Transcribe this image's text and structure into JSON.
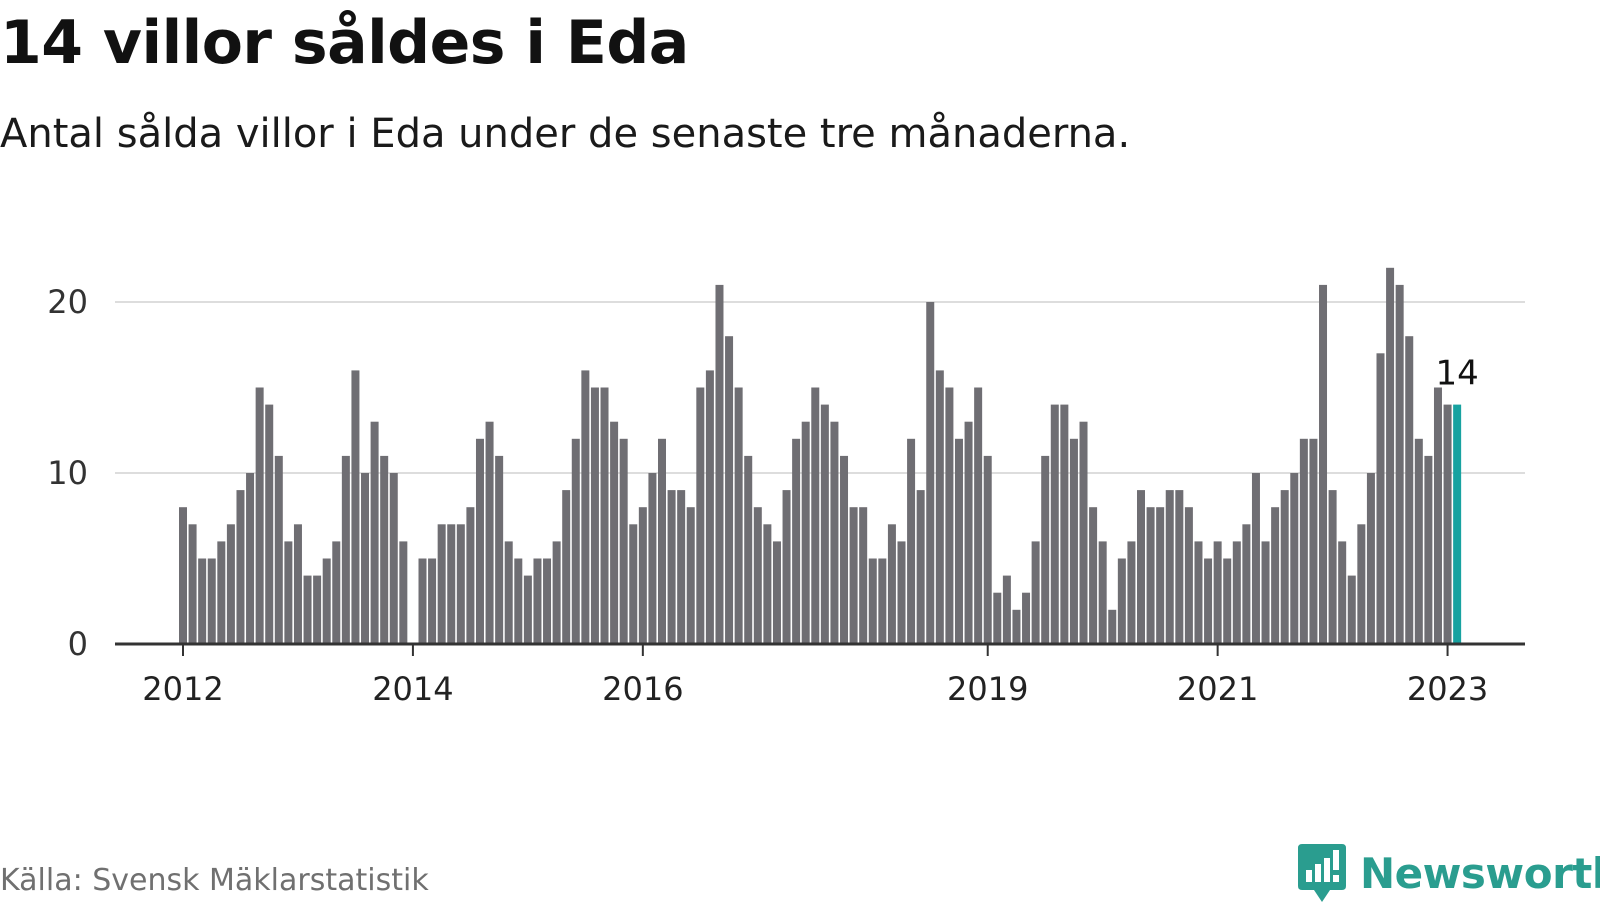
{
  "header": {
    "title": "14 villor såldes i Eda",
    "subtitle": "Antal sålda villor i Eda under de senaste tre månaderna."
  },
  "footer": {
    "source": "Källa: Svensk Mäklarstatistik",
    "brand": "Newsworthy"
  },
  "colors": {
    "bar": "#6f6e73",
    "highlight": "#17a2a0",
    "gridline": "#dddddd",
    "axis": "#333333",
    "brand": "#2a9d8f"
  },
  "chart_data": {
    "type": "bar",
    "title": "14 villor såldes i Eda",
    "subtitle": "Antal sålda villor i Eda under de senaste tre månaderna.",
    "xlabel": "",
    "ylabel": "",
    "ylim": [
      0,
      22
    ],
    "y_ticks": [
      0,
      10,
      20
    ],
    "grid": true,
    "x_ticks": [
      {
        "label": "2012",
        "month_index": 0
      },
      {
        "label": "2014",
        "month_index": 24
      },
      {
        "label": "2016",
        "month_index": 48
      },
      {
        "label": "2019",
        "month_index": 84
      },
      {
        "label": "2021",
        "month_index": 108
      },
      {
        "label": "2023",
        "month_index": 132
      }
    ],
    "start": "2012-01",
    "values": [
      8,
      7,
      5,
      5,
      6,
      7,
      9,
      10,
      15,
      14,
      11,
      6,
      7,
      4,
      4,
      5,
      6,
      11,
      16,
      10,
      13,
      11,
      10,
      6,
      null,
      5,
      5,
      7,
      7,
      7,
      8,
      12,
      13,
      11,
      6,
      5,
      4,
      5,
      5,
      6,
      9,
      12,
      16,
      15,
      15,
      13,
      12,
      7,
      8,
      10,
      12,
      9,
      9,
      8,
      15,
      16,
      21,
      18,
      15,
      11,
      8,
      7,
      6,
      9,
      12,
      13,
      15,
      14,
      13,
      11,
      8,
      8,
      5,
      5,
      7,
      6,
      12,
      9,
      20,
      16,
      15,
      12,
      13,
      15,
      11,
      3,
      4,
      2,
      3,
      6,
      11,
      14,
      14,
      12,
      13,
      8,
      6,
      2,
      5,
      6,
      9,
      8,
      8,
      9,
      9,
      8,
      6,
      5,
      6,
      5,
      6,
      7,
      10,
      6,
      8,
      9,
      10,
      12,
      12,
      21,
      9,
      6,
      4,
      7,
      10,
      17,
      22,
      21,
      18,
      12,
      11,
      15,
      14,
      14
    ],
    "highlight_index": 133,
    "highlight_label": "14"
  }
}
